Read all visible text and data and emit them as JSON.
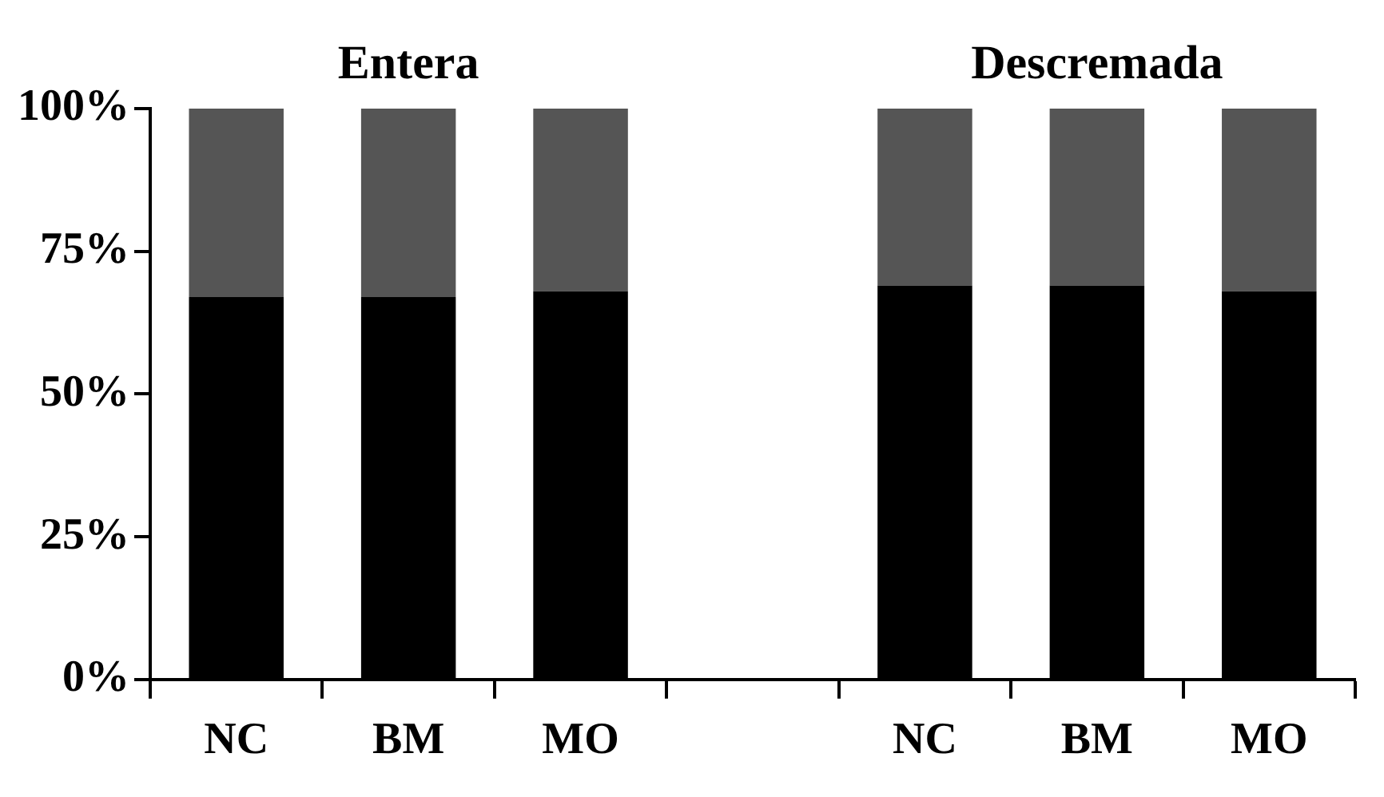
{
  "chart_data": {
    "type": "bar",
    "stacked": true,
    "categories": [
      "NC",
      "BM",
      "MO",
      null,
      "NC",
      "BM",
      "MO"
    ],
    "series": [
      {
        "color": "#000000",
        "values": [
          67,
          67,
          68,
          null,
          69,
          69,
          68
        ]
      },
      {
        "color": "#555555",
        "values": [
          33,
          33,
          32,
          null,
          31,
          31,
          32
        ]
      }
    ],
    "ylim": [
      0,
      100
    ],
    "yticks": [
      {
        "value": 0,
        "label": "0%"
      },
      {
        "value": 25,
        "label": "25%"
      },
      {
        "value": 50,
        "label": "50%"
      },
      {
        "value": 75,
        "label": "75%"
      },
      {
        "value": 100,
        "label": "100%"
      }
    ],
    "annotations": [
      "Entera",
      "Descremada"
    ],
    "grid": false,
    "legend": false
  }
}
